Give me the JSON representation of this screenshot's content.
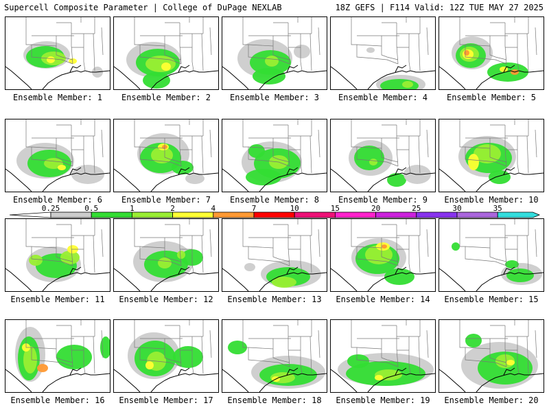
{
  "header": {
    "left": "Supercell Composite Parameter | College of DuPage NEXLAB",
    "right": "18Z GEFS | F114 Valid: 12Z TUE MAY 27 2025"
  },
  "colorbar": {
    "ticks": [
      "0.25",
      "0.5",
      "1",
      "2",
      "4",
      "7",
      "10",
      "15",
      "20",
      "25",
      "30",
      "35"
    ],
    "colors": [
      "#cccccc",
      "#33dd33",
      "#99ee33",
      "#ffff33",
      "#ff9933",
      "#ff0000",
      "#ee1177",
      "#ff22cc",
      "#cc22dd",
      "#8833ee",
      "#aa66dd",
      "#33dddd"
    ]
  },
  "panels": [
    {
      "label": "Ensemble Member: 1"
    },
    {
      "label": "Ensemble Member: 2"
    },
    {
      "label": "Ensemble Member: 3"
    },
    {
      "label": "Ensemble Member: 4"
    },
    {
      "label": "Ensemble Member: 5"
    },
    {
      "label": "Ensemble Member: 6"
    },
    {
      "label": "Ensemble Member: 7"
    },
    {
      "label": "Ensemble Member: 8"
    },
    {
      "label": "Ensemble Member: 9"
    },
    {
      "label": "Ensemble Member: 10"
    },
    {
      "label": "Ensemble Member: 11"
    },
    {
      "label": "Ensemble Member: 12"
    },
    {
      "label": "Ensemble Member: 13"
    },
    {
      "label": "Ensemble Member: 14"
    },
    {
      "label": "Ensemble Member: 15"
    },
    {
      "label": "Ensemble Member: 16"
    },
    {
      "label": "Ensemble Member: 17"
    },
    {
      "label": "Ensemble Member: 18"
    },
    {
      "label": "Ensemble Member: 19"
    },
    {
      "label": "Ensemble Member: 20"
    }
  ]
}
